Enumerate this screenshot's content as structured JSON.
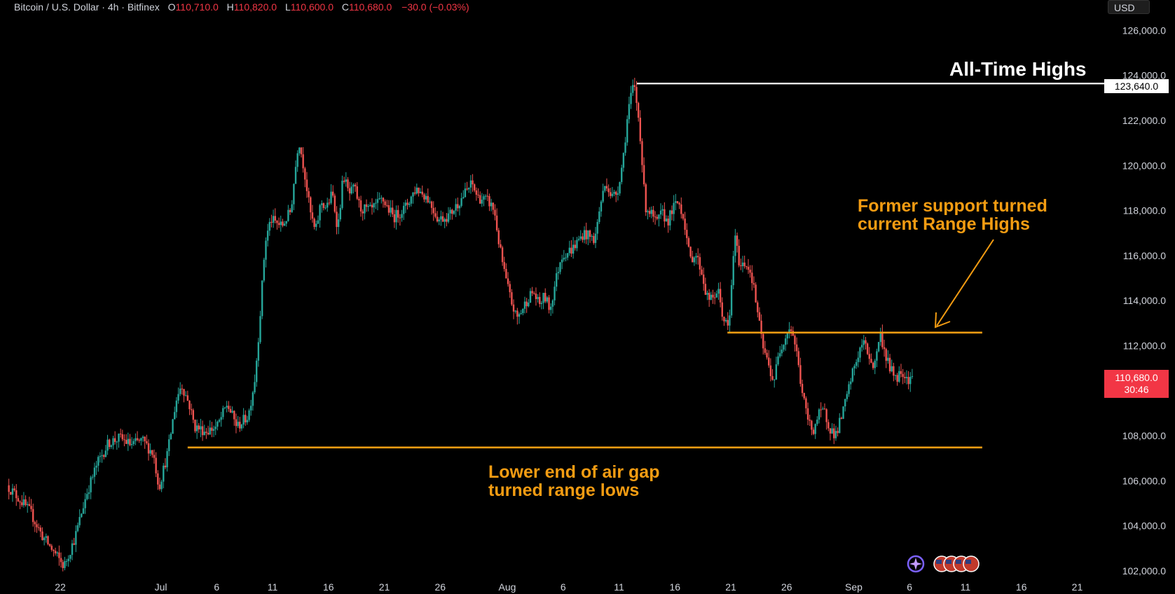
{
  "header": {
    "symbol": "Bitcoin / U.S. Dollar · 4h · Bitfinex",
    "open_label": "O",
    "open": "110,710.0",
    "high_label": "H",
    "high": "110,820.0",
    "low_label": "L",
    "low": "110,600.0",
    "close_label": "C",
    "close": "110,680.0",
    "change": "−30.0 (−0.03%)"
  },
  "currency_button": "USD",
  "annotations": {
    "all_time_highs": "All-Time Highs",
    "former_support_line1": "Former support turned",
    "former_support_line2": "current Range Highs",
    "lower_end_line1": "Lower end of air gap",
    "lower_end_line2": "turned range lows"
  },
  "price_scale": {
    "ath_label": "123,640.0",
    "current_price": "110,680.0",
    "countdown": "30:46"
  },
  "colors": {
    "up": "#26a69a",
    "down": "#ef5350",
    "orange": "#f39c12",
    "ath_line": "#ffffff",
    "background": "#000000"
  },
  "chart_data": {
    "type": "candlestick",
    "title": "Bitcoin / U.S. Dollar · 4h · Bitfinex",
    "ylim": [
      101500,
      126800
    ],
    "y_ticks": [
      {
        "value": 102000,
        "label": "102,000.0"
      },
      {
        "value": 104000,
        "label": "104,000.0"
      },
      {
        "value": 106000,
        "label": "106,000.0"
      },
      {
        "value": 108000,
        "label": "108,000.0"
      },
      {
        "value": 110000,
        "label": ""
      },
      {
        "value": 112000,
        "label": "112,000.0"
      },
      {
        "value": 114000,
        "label": "114,000.0"
      },
      {
        "value": 116000,
        "label": "116,000.0"
      },
      {
        "value": 118000,
        "label": "118,000.0"
      },
      {
        "value": 120000,
        "label": "120,000.0"
      },
      {
        "value": 122000,
        "label": "122,000.0"
      },
      {
        "value": 124000,
        "label": "124,000.0"
      },
      {
        "value": 126000,
        "label": "126,000.0"
      }
    ],
    "x_ticks": [
      {
        "day": -8,
        "label": "22"
      },
      {
        "day": 1,
        "label": "Jul"
      },
      {
        "day": 6,
        "label": "6"
      },
      {
        "day": 11,
        "label": "11"
      },
      {
        "day": 16,
        "label": "16"
      },
      {
        "day": 21,
        "label": "21"
      },
      {
        "day": 26,
        "label": "26"
      },
      {
        "day": 32,
        "label": "Aug"
      },
      {
        "day": 37,
        "label": "6"
      },
      {
        "day": 42,
        "label": "11"
      },
      {
        "day": 47,
        "label": "16"
      },
      {
        "day": 52,
        "label": "21"
      },
      {
        "day": 57,
        "label": "26"
      },
      {
        "day": 63,
        "label": "Sep"
      },
      {
        "day": 68,
        "label": "6"
      },
      {
        "day": 73,
        "label": "11"
      },
      {
        "day": 78,
        "label": "16"
      },
      {
        "day": 83,
        "label": "21"
      }
    ],
    "price_path": [
      [
        -12.6,
        105800
      ],
      [
        -11.5,
        105200
      ],
      [
        -10.5,
        104600
      ],
      [
        -9.5,
        103600
      ],
      [
        -8.5,
        102900
      ],
      [
        -7.5,
        102200
      ],
      [
        -6.5,
        103500
      ],
      [
        -5.5,
        105400
      ],
      [
        -4.5,
        106800
      ],
      [
        -3.5,
        107700
      ],
      [
        -2.5,
        107900
      ],
      [
        -1.5,
        107600
      ],
      [
        -0.5,
        107800
      ],
      [
        0.5,
        107200
      ],
      [
        1.0,
        105700
      ],
      [
        1.8,
        107300
      ],
      [
        2.5,
        109500
      ],
      [
        3.0,
        110300
      ],
      [
        3.7,
        109400
      ],
      [
        4.2,
        108400
      ],
      [
        5.2,
        108200
      ],
      [
        6.2,
        108400
      ],
      [
        7.1,
        109400
      ],
      [
        8.0,
        108400
      ],
      [
        9.0,
        108900
      ],
      [
        9.6,
        110600
      ],
      [
        10.0,
        113000
      ],
      [
        10.5,
        116600
      ],
      [
        11.0,
        117600
      ],
      [
        12.0,
        117300
      ],
      [
        12.8,
        118000
      ],
      [
        13.5,
        121200
      ],
      [
        14.0,
        119800
      ],
      [
        14.5,
        118000
      ],
      [
        15.0,
        117000
      ],
      [
        15.5,
        118400
      ],
      [
        16.0,
        118100
      ],
      [
        16.5,
        118800
      ],
      [
        17.0,
        117200
      ],
      [
        17.5,
        119600
      ],
      [
        18.0,
        118700
      ],
      [
        18.5,
        119000
      ],
      [
        19.0,
        118100
      ],
      [
        20.0,
        118000
      ],
      [
        21.0,
        118500
      ],
      [
        22.0,
        117700
      ],
      [
        23.0,
        118100
      ],
      [
        24.0,
        119000
      ],
      [
        25.0,
        118600
      ],
      [
        26.0,
        117600
      ],
      [
        27.0,
        117800
      ],
      [
        28.0,
        118500
      ],
      [
        29.0,
        119200
      ],
      [
        29.5,
        118600
      ],
      [
        30.5,
        118400
      ],
      [
        31.0,
        118000
      ],
      [
        31.5,
        116300
      ],
      [
        32.0,
        115000
      ],
      [
        32.5,
        114000
      ],
      [
        33.0,
        113200
      ],
      [
        33.5,
        113600
      ],
      [
        34.0,
        114100
      ],
      [
        34.5,
        114400
      ],
      [
        35.0,
        113800
      ],
      [
        35.5,
        114200
      ],
      [
        36.0,
        113600
      ],
      [
        36.5,
        114900
      ],
      [
        37.0,
        116000
      ],
      [
        38.0,
        116300
      ],
      [
        39.0,
        117000
      ],
      [
        40.0,
        116700
      ],
      [
        40.5,
        118300
      ],
      [
        41.0,
        119300
      ],
      [
        41.5,
        118600
      ],
      [
        42.0,
        118800
      ],
      [
        42.5,
        120200
      ],
      [
        43.0,
        122500
      ],
      [
        43.5,
        123640
      ],
      [
        44.0,
        121800
      ],
      [
        44.5,
        118200
      ],
      [
        45.0,
        117900
      ],
      [
        45.5,
        117400
      ],
      [
        46.0,
        117900
      ],
      [
        46.5,
        117500
      ],
      [
        47.0,
        118100
      ],
      [
        47.5,
        118400
      ],
      [
        48.0,
        117600
      ],
      [
        48.5,
        115800
      ],
      [
        49.0,
        116100
      ],
      [
        49.5,
        115400
      ],
      [
        50.0,
        114200
      ],
      [
        50.5,
        114000
      ],
      [
        51.0,
        114500
      ],
      [
        51.5,
        113200
      ],
      [
        52.0,
        112700
      ],
      [
        52.5,
        116900
      ],
      [
        53.0,
        115500
      ],
      [
        53.5,
        115700
      ],
      [
        54.0,
        115200
      ],
      [
        54.5,
        113700
      ],
      [
        55.0,
        112000
      ],
      [
        55.5,
        111200
      ],
      [
        56.0,
        110400
      ],
      [
        56.5,
        111700
      ],
      [
        57.0,
        112400
      ],
      [
        57.5,
        112900
      ],
      [
        58.0,
        111900
      ],
      [
        58.5,
        110100
      ],
      [
        59.0,
        108800
      ],
      [
        59.5,
        108200
      ],
      [
        60.0,
        108900
      ],
      [
        60.5,
        109100
      ],
      [
        61.0,
        108400
      ],
      [
        61.5,
        108000
      ],
      [
        62.0,
        108700
      ],
      [
        62.5,
        109600
      ],
      [
        63.0,
        110700
      ],
      [
        63.5,
        111500
      ],
      [
        64.0,
        112200
      ],
      [
        64.5,
        111600
      ],
      [
        65.0,
        111000
      ],
      [
        65.5,
        112600
      ],
      [
        66.0,
        111600
      ],
      [
        66.5,
        110900
      ],
      [
        67.0,
        110600
      ],
      [
        67.5,
        110900
      ],
      [
        68.0,
        110500
      ],
      [
        68.3,
        110680
      ]
    ],
    "horizontal_lines": [
      {
        "name": "all-time-high",
        "value": 123640,
        "from_day": 43.6,
        "to_day": 88.5,
        "color": "#ffffff"
      },
      {
        "name": "range-high",
        "value": 112580,
        "from_day": 51.7,
        "to_day": 74.5,
        "color": "#f39c12"
      },
      {
        "name": "range-low",
        "value": 107480,
        "from_day": 3.4,
        "to_day": 74.5,
        "color": "#f39c12"
      }
    ],
    "current_price": 110680,
    "grid": false
  }
}
